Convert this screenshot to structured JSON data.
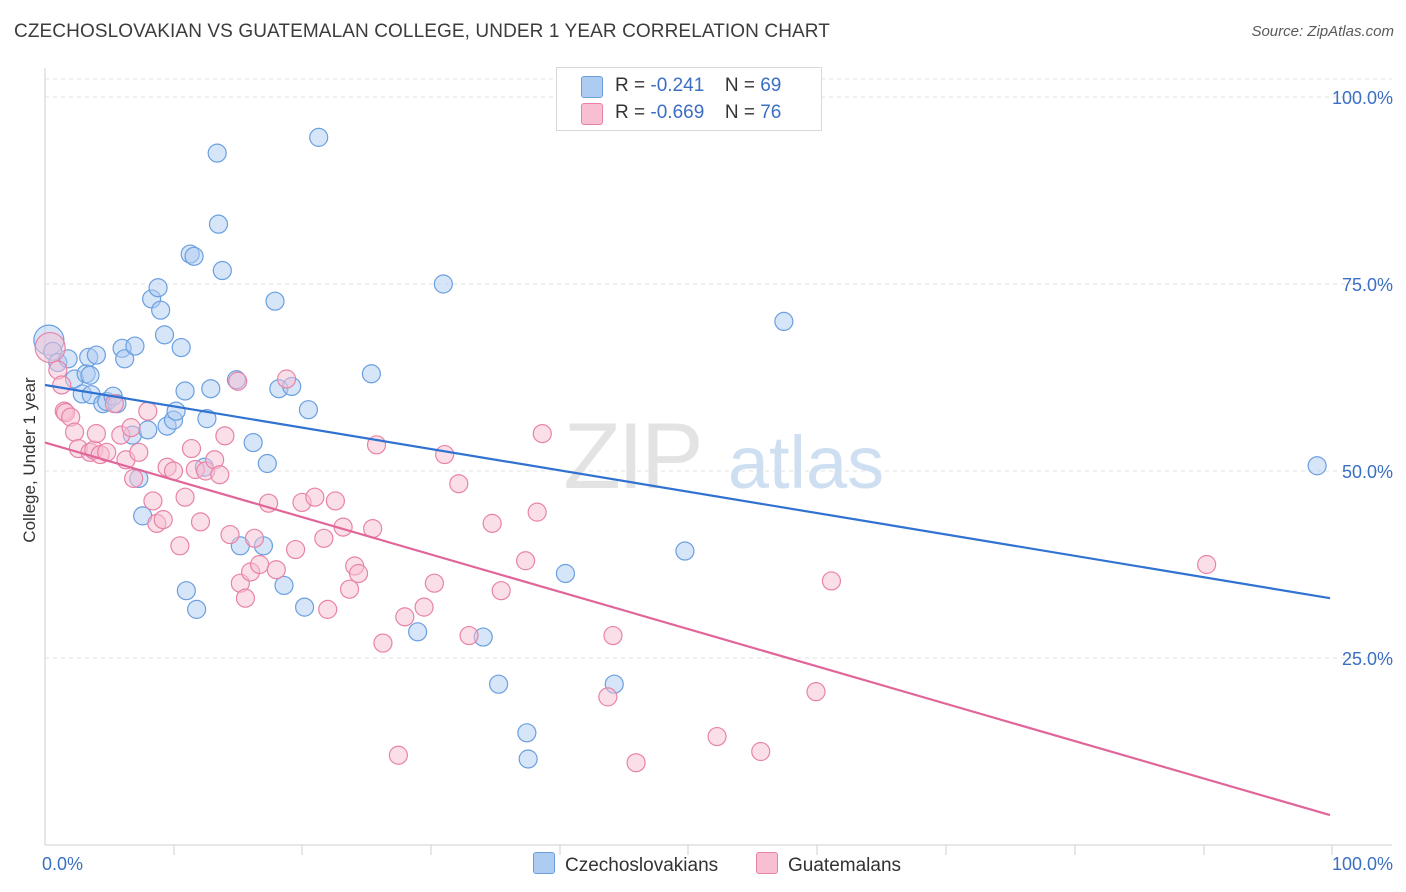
{
  "title": "CZECHOSLOVAKIAN VS GUATEMALAN COLLEGE, UNDER 1 YEAR CORRELATION CHART",
  "source": "Source: ZipAtlas.com",
  "watermark": {
    "zip": "ZIP",
    "atlas": "atlas"
  },
  "legend": {
    "r_label": "R =",
    "n_label": "N =",
    "rows": [
      {
        "name": "Czechoslovakians",
        "r": "-0.241",
        "n": "69",
        "fill": "#aecbf2",
        "stroke": "#6a9fe0"
      },
      {
        "name": "Guatemalans",
        "r": "-0.669",
        "n": "76",
        "fill": "#f7bfd1",
        "stroke": "#e883a7"
      }
    ]
  },
  "chart_data": {
    "type": "scatter",
    "title": "CZECHOSLOVAKIAN VS GUATEMALAN COLLEGE, UNDER 1 YEAR CORRELATION CHART",
    "xlabel": "",
    "ylabel": "College, Under 1 year",
    "xlim": [
      0,
      100
    ],
    "ylim": [
      0,
      100
    ],
    "x_tick_labels": [
      "0.0%",
      "100.0%"
    ],
    "y_ticks": [
      25,
      50,
      75,
      100
    ],
    "y_tick_labels": [
      "25.0%",
      "50.0%",
      "75.0%",
      "100.0%"
    ],
    "grid": true,
    "series": [
      {
        "name": "Czechoslovakians",
        "color": "#6a9fe0",
        "fill": "#aecbf2",
        "line_color": "#2f72d0",
        "trend": {
          "x": [
            0,
            100
          ],
          "y": [
            61.5,
            33.0
          ]
        },
        "points": [
          {
            "x": 0.3,
            "y": 67.5,
            "big": true
          },
          {
            "x": 0.6,
            "y": 66.0
          },
          {
            "x": 1.0,
            "y": 64.5
          },
          {
            "x": 1.8,
            "y": 65.0
          },
          {
            "x": 2.3,
            "y": 62.3
          },
          {
            "x": 2.9,
            "y": 60.3
          },
          {
            "x": 3.2,
            "y": 63.0
          },
          {
            "x": 3.5,
            "y": 62.8
          },
          {
            "x": 3.4,
            "y": 65.2
          },
          {
            "x": 3.6,
            "y": 60.2
          },
          {
            "x": 4.0,
            "y": 65.5
          },
          {
            "x": 4.5,
            "y": 59.0
          },
          {
            "x": 4.8,
            "y": 59.3
          },
          {
            "x": 5.3,
            "y": 60.0
          },
          {
            "x": 5.6,
            "y": 59.0
          },
          {
            "x": 6.0,
            "y": 66.4
          },
          {
            "x": 6.2,
            "y": 65.0
          },
          {
            "x": 6.8,
            "y": 54.8
          },
          {
            "x": 7.0,
            "y": 66.7
          },
          {
            "x": 7.3,
            "y": 49.0
          },
          {
            "x": 7.6,
            "y": 44.0
          },
          {
            "x": 8.0,
            "y": 55.5
          },
          {
            "x": 8.3,
            "y": 73.0
          },
          {
            "x": 8.8,
            "y": 74.5
          },
          {
            "x": 9.0,
            "y": 71.5
          },
          {
            "x": 9.3,
            "y": 68.2
          },
          {
            "x": 9.5,
            "y": 56.0
          },
          {
            "x": 10.0,
            "y": 56.8
          },
          {
            "x": 10.2,
            "y": 58.0
          },
          {
            "x": 10.6,
            "y": 66.5
          },
          {
            "x": 10.9,
            "y": 60.7
          },
          {
            "x": 11.0,
            "y": 34.0
          },
          {
            "x": 11.3,
            "y": 79.0
          },
          {
            "x": 11.6,
            "y": 78.7
          },
          {
            "x": 11.8,
            "y": 31.5
          },
          {
            "x": 12.4,
            "y": 50.5
          },
          {
            "x": 12.6,
            "y": 57.0
          },
          {
            "x": 12.9,
            "y": 61.0
          },
          {
            "x": 13.4,
            "y": 92.5
          },
          {
            "x": 13.5,
            "y": 83.0
          },
          {
            "x": 13.8,
            "y": 76.8
          },
          {
            "x": 14.9,
            "y": 62.2
          },
          {
            "x": 15.2,
            "y": 40.0
          },
          {
            "x": 16.2,
            "y": 53.8
          },
          {
            "x": 17.0,
            "y": 40.0
          },
          {
            "x": 17.3,
            "y": 51.0
          },
          {
            "x": 17.9,
            "y": 72.7
          },
          {
            "x": 18.2,
            "y": 61.0
          },
          {
            "x": 18.6,
            "y": 34.7
          },
          {
            "x": 19.2,
            "y": 61.3
          },
          {
            "x": 20.2,
            "y": 31.8
          },
          {
            "x": 20.5,
            "y": 58.2
          },
          {
            "x": 21.3,
            "y": 94.6
          },
          {
            "x": 25.4,
            "y": 63.0
          },
          {
            "x": 29.0,
            "y": 28.5
          },
          {
            "x": 31.0,
            "y": 75.0
          },
          {
            "x": 34.1,
            "y": 27.8
          },
          {
            "x": 35.3,
            "y": 21.5
          },
          {
            "x": 37.5,
            "y": 15.0
          },
          {
            "x": 37.6,
            "y": 11.5
          },
          {
            "x": 40.5,
            "y": 36.3
          },
          {
            "x": 44.3,
            "y": 21.5
          },
          {
            "x": 49.8,
            "y": 39.3
          },
          {
            "x": 57.5,
            "y": 70.0
          },
          {
            "x": 99.0,
            "y": 50.7
          }
        ]
      },
      {
        "name": "Guatemalans",
        "color": "#e883a7",
        "fill": "#f7bfd1",
        "line_color": "#e0669a",
        "trend": {
          "x": [
            0,
            100
          ],
          "y": [
            53.8,
            4.0
          ]
        },
        "points": [
          {
            "x": 0.4,
            "y": 66.5,
            "big": true
          },
          {
            "x": 1.0,
            "y": 63.5
          },
          {
            "x": 1.3,
            "y": 61.5
          },
          {
            "x": 1.5,
            "y": 58.0
          },
          {
            "x": 1.6,
            "y": 57.8
          },
          {
            "x": 2.0,
            "y": 57.2
          },
          {
            "x": 2.3,
            "y": 55.2
          },
          {
            "x": 2.6,
            "y": 53.0
          },
          {
            "x": 3.5,
            "y": 52.5
          },
          {
            "x": 3.8,
            "y": 52.8
          },
          {
            "x": 4.0,
            "y": 55.0
          },
          {
            "x": 4.3,
            "y": 52.2
          },
          {
            "x": 4.8,
            "y": 52.5
          },
          {
            "x": 5.4,
            "y": 59.0
          },
          {
            "x": 5.9,
            "y": 54.8
          },
          {
            "x": 6.3,
            "y": 51.5
          },
          {
            "x": 6.7,
            "y": 55.8
          },
          {
            "x": 6.9,
            "y": 49.0
          },
          {
            "x": 7.3,
            "y": 52.5
          },
          {
            "x": 8.0,
            "y": 58.0
          },
          {
            "x": 8.4,
            "y": 46.0
          },
          {
            "x": 8.7,
            "y": 43.0
          },
          {
            "x": 9.2,
            "y": 43.5
          },
          {
            "x": 9.5,
            "y": 50.5
          },
          {
            "x": 10.0,
            "y": 50.0
          },
          {
            "x": 10.5,
            "y": 40.0
          },
          {
            "x": 10.9,
            "y": 46.5
          },
          {
            "x": 11.4,
            "y": 53.0
          },
          {
            "x": 11.7,
            "y": 50.2
          },
          {
            "x": 12.1,
            "y": 43.2
          },
          {
            "x": 12.5,
            "y": 50.0
          },
          {
            "x": 13.2,
            "y": 51.5
          },
          {
            "x": 13.6,
            "y": 49.5
          },
          {
            "x": 14.0,
            "y": 54.7
          },
          {
            "x": 14.4,
            "y": 41.5
          },
          {
            "x": 15.0,
            "y": 62.0
          },
          {
            "x": 15.2,
            "y": 35.0
          },
          {
            "x": 15.6,
            "y": 33.0
          },
          {
            "x": 16.0,
            "y": 36.5
          },
          {
            "x": 16.3,
            "y": 41.0
          },
          {
            "x": 16.7,
            "y": 37.5
          },
          {
            "x": 17.4,
            "y": 45.7
          },
          {
            "x": 18.0,
            "y": 36.8
          },
          {
            "x": 18.8,
            "y": 62.3
          },
          {
            "x": 19.5,
            "y": 39.5
          },
          {
            "x": 20.0,
            "y": 45.8
          },
          {
            "x": 21.0,
            "y": 46.5
          },
          {
            "x": 21.7,
            "y": 41.0
          },
          {
            "x": 22.0,
            "y": 31.5
          },
          {
            "x": 22.6,
            "y": 46.0
          },
          {
            "x": 23.2,
            "y": 42.5
          },
          {
            "x": 23.7,
            "y": 34.2
          },
          {
            "x": 24.1,
            "y": 37.3
          },
          {
            "x": 24.4,
            "y": 36.3
          },
          {
            "x": 25.5,
            "y": 42.3
          },
          {
            "x": 25.8,
            "y": 53.5
          },
          {
            "x": 26.3,
            "y": 27.0
          },
          {
            "x": 27.5,
            "y": 12.0
          },
          {
            "x": 28.0,
            "y": 30.5
          },
          {
            "x": 29.5,
            "y": 31.8
          },
          {
            "x": 30.3,
            "y": 35.0
          },
          {
            "x": 31.1,
            "y": 52.2
          },
          {
            "x": 32.2,
            "y": 48.3
          },
          {
            "x": 33.0,
            "y": 28.0
          },
          {
            "x": 34.8,
            "y": 43.0
          },
          {
            "x": 35.5,
            "y": 34.0
          },
          {
            "x": 37.4,
            "y": 38.0
          },
          {
            "x": 38.3,
            "y": 44.5
          },
          {
            "x": 38.7,
            "y": 55.0
          },
          {
            "x": 43.8,
            "y": 19.8
          },
          {
            "x": 44.2,
            "y": 28.0
          },
          {
            "x": 46.0,
            "y": 11.0
          },
          {
            "x": 52.3,
            "y": 14.5
          },
          {
            "x": 55.7,
            "y": 12.5
          },
          {
            "x": 60.0,
            "y": 20.5
          },
          {
            "x": 61.2,
            "y": 35.3
          },
          {
            "x": 90.4,
            "y": 37.5
          }
        ]
      }
    ]
  }
}
